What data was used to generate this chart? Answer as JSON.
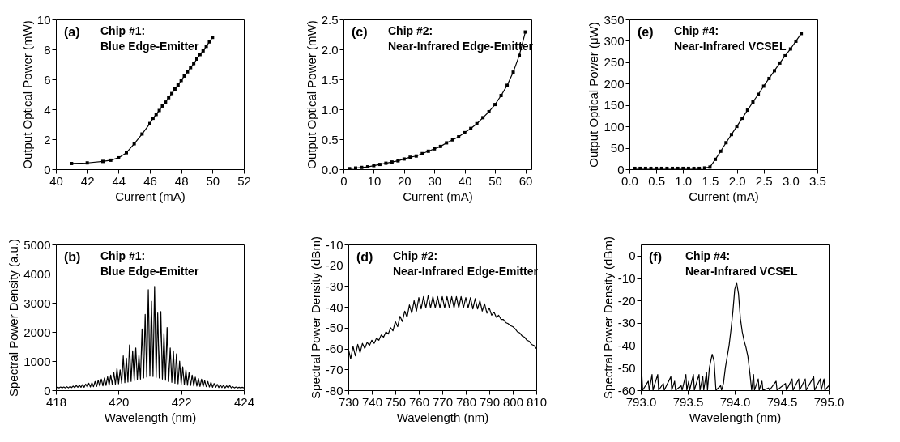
{
  "chart_data": [
    {
      "type": "line",
      "xlabel": "Current (mA)",
      "ylabel": "Output Optical Power (mW)",
      "annotations": [
        "(a)",
        "Chip #1:",
        "Blue Edge-Emitter"
      ],
      "xlim": [
        40,
        52
      ],
      "xticks": [
        40,
        42,
        44,
        46,
        48,
        50,
        52
      ],
      "ylim": [
        0,
        10
      ],
      "yticks": [
        0,
        2,
        4,
        6,
        8,
        10
      ],
      "marker": "square",
      "series": [
        {
          "color": "#000000",
          "x": [
            41,
            42,
            43,
            43.5,
            44,
            44.5,
            45,
            45.5,
            46,
            46.2,
            46.4,
            46.6,
            46.8,
            47,
            47.2,
            47.4,
            47.6,
            47.8,
            48,
            48.2,
            48.4,
            48.6,
            48.8,
            49,
            49.2,
            49.4,
            49.6,
            49.8,
            50
          ],
          "values": [
            0.38,
            0.42,
            0.52,
            0.6,
            0.76,
            1.1,
            1.7,
            2.35,
            3.05,
            3.4,
            3.65,
            3.92,
            4.22,
            4.48,
            4.77,
            5.05,
            5.35,
            5.62,
            5.92,
            6.22,
            6.5,
            6.78,
            7.05,
            7.35,
            7.65,
            7.9,
            8.2,
            8.5,
            8.8
          ]
        }
      ]
    },
    {
      "type": "line",
      "xlabel": "Current (mA)",
      "ylabel": "Output Optical Power (mW)",
      "annotations": [
        "(c)",
        "Chip #2:",
        "Near-Infrared Edge-Emitter"
      ],
      "xlim": [
        0,
        62
      ],
      "xticks": [
        0,
        10,
        20,
        30,
        40,
        50,
        60
      ],
      "ylim": [
        0,
        2.5
      ],
      "yticks": [
        {
          "value": 0,
          "label": "0.0"
        },
        0.5,
        {
          "value": 1,
          "label": "1.0"
        },
        1.5,
        {
          "value": 2,
          "label": "2.0"
        },
        2.5
      ],
      "marker": "square",
      "series": [
        {
          "color": "#000000",
          "x": [
            2,
            4,
            6,
            8,
            10,
            12,
            14,
            16,
            18,
            20,
            22,
            24,
            26,
            28,
            30,
            32,
            34,
            36,
            38,
            40,
            42,
            44,
            46,
            48,
            50,
            52,
            54,
            56,
            58,
            60
          ],
          "values": [
            0.01,
            0.02,
            0.03,
            0.04,
            0.06,
            0.08,
            0.1,
            0.12,
            0.14,
            0.17,
            0.2,
            0.22,
            0.26,
            0.3,
            0.34,
            0.38,
            0.44,
            0.49,
            0.54,
            0.61,
            0.68,
            0.76,
            0.86,
            0.96,
            1.08,
            1.23,
            1.4,
            1.62,
            1.9,
            2.29
          ]
        }
      ]
    },
    {
      "type": "line",
      "xlabel": "Current (mA)",
      "ylabel": "Output Optical Power (μW)",
      "annotations": [
        "(e)",
        "Chip #4:",
        "Near-Infrared VCSEL"
      ],
      "xlim": [
        0,
        3.5
      ],
      "xticks": [
        {
          "value": 0,
          "label": "0.0"
        },
        0.5,
        {
          "value": 1,
          "label": "1.0"
        },
        1.5,
        {
          "value": 2,
          "label": "2.0"
        },
        2.5,
        {
          "value": 3,
          "label": "3.0"
        },
        3.5
      ],
      "ylim": [
        0,
        350
      ],
      "yticks": [
        0,
        50,
        100,
        150,
        200,
        250,
        300,
        350
      ],
      "marker": "square",
      "series": [
        {
          "color": "#000000",
          "x": [
            0.1,
            0.2,
            0.3,
            0.4,
            0.5,
            0.6,
            0.7,
            0.8,
            0.9,
            1.0,
            1.1,
            1.2,
            1.3,
            1.4,
            1.5,
            1.6,
            1.7,
            1.8,
            1.9,
            2.0,
            2.1,
            2.2,
            2.3,
            2.4,
            2.5,
            2.6,
            2.7,
            2.8,
            2.9,
            3.0,
            3.1,
            3.2
          ],
          "values": [
            2,
            2,
            2,
            2,
            2,
            2,
            2,
            2,
            2,
            2,
            2,
            2,
            2,
            3,
            5,
            23,
            42,
            62,
            81,
            100,
            119,
            138,
            157,
            175,
            194,
            212,
            230,
            248,
            265,
            281,
            299,
            317
          ]
        }
      ]
    },
    {
      "type": "line",
      "xlabel": "Wavelength (nm)",
      "ylabel": "Spectral Power Density (a.u.)",
      "annotations": [
        "(b)",
        "Chip #1:",
        "Blue Edge-Emitter"
      ],
      "xlim": [
        418,
        424
      ],
      "xticks": [
        418,
        420,
        422,
        424
      ],
      "ylim": [
        0,
        5000
      ],
      "yticks": [
        0,
        1000,
        2000,
        3000,
        4000,
        5000
      ],
      "series": [
        {
          "color": "#000000",
          "x": [
            418.0,
            418.05,
            418.1,
            418.15,
            418.2,
            418.25,
            418.3,
            418.35,
            418.4,
            418.45,
            418.5,
            418.55,
            418.6,
            418.65,
            418.7,
            418.75,
            418.8,
            418.85,
            418.9,
            418.95,
            419.0,
            419.05,
            419.1,
            419.15,
            419.2,
            419.25,
            419.3,
            419.35,
            419.4,
            419.45,
            419.5,
            419.55,
            419.6,
            419.65,
            419.7,
            419.75,
            419.8,
            419.85,
            419.9,
            419.95,
            420.0,
            420.05,
            420.1,
            420.15,
            420.2,
            420.25,
            420.3,
            420.35,
            420.4,
            420.45,
            420.5,
            420.55,
            420.6,
            420.65,
            420.7,
            420.75,
            420.8,
            420.85,
            420.9,
            420.95,
            421.0,
            421.05,
            421.1,
            421.15,
            421.2,
            421.25,
            421.3,
            421.35,
            421.4,
            421.45,
            421.5,
            421.55,
            421.6,
            421.65,
            421.7,
            421.75,
            421.8,
            421.85,
            421.9,
            421.95,
            422.0,
            422.05,
            422.1,
            422.15,
            422.2,
            422.25,
            422.3,
            422.35,
            422.4,
            422.45,
            422.5,
            422.55,
            422.6,
            422.65,
            422.7,
            422.75,
            422.8,
            422.85,
            422.9,
            422.95,
            423.0,
            423.05,
            423.1,
            423.15,
            423.2,
            423.25,
            423.3,
            423.35,
            423.4,
            423.45,
            423.5,
            423.55,
            423.6,
            423.65,
            423.7,
            423.75,
            423.8,
            423.85,
            423.9,
            423.95,
            424.0
          ],
          "values": [
            80,
            100,
            80,
            110,
            80,
            110,
            80,
            120,
            80,
            130,
            90,
            140,
            90,
            160,
            100,
            170,
            100,
            190,
            100,
            210,
            110,
            240,
            110,
            260,
            120,
            300,
            130,
            340,
            140,
            380,
            150,
            420,
            160,
            460,
            170,
            520,
            190,
            600,
            200,
            750,
            220,
            700,
            240,
            1180,
            260,
            1100,
            280,
            1550,
            300,
            1350,
            330,
            1450,
            360,
            1200,
            380,
            2100,
            420,
            2600,
            450,
            3450,
            480,
            3050,
            470,
            3560,
            440,
            2650,
            420,
            2700,
            380,
            1950,
            340,
            2150,
            300,
            1450,
            270,
            1350,
            240,
            1250,
            220,
            1000,
            200,
            800,
            180,
            700,
            170,
            600,
            160,
            520,
            150,
            450,
            140,
            400,
            130,
            380,
            120,
            330,
            120,
            300,
            110,
            270,
            100,
            230,
            100,
            200,
            90,
            180,
            90,
            170,
            80,
            150,
            80,
            160,
            80,
            120,
            80,
            110,
            80,
            100,
            80,
            100,
            80
          ]
        }
      ]
    },
    {
      "type": "line",
      "xlabel": "Wavelength (nm)",
      "ylabel": "Spectral Power Density (dBm)",
      "annotations": [
        "(d)",
        "Chip #2:",
        "Near-Infrared Edge-Emitter"
      ],
      "xlim": [
        730,
        810
      ],
      "xticks": [
        730,
        740,
        750,
        760,
        770,
        780,
        790,
        800,
        810
      ],
      "ylim": [
        -80,
        -10
      ],
      "yticks": [
        -80,
        -70,
        -60,
        -50,
        -40,
        -30,
        -20,
        -10
      ],
      "series": [
        {
          "color": "#000000",
          "x": [
            730,
            731,
            732,
            733,
            734,
            735,
            736,
            737,
            738,
            739,
            740,
            741,
            742,
            743,
            744,
            745,
            746,
            747,
            748,
            749,
            750,
            751,
            752,
            753,
            754,
            755,
            756,
            757,
            758,
            759,
            760,
            761,
            762,
            763,
            764,
            765,
            766,
            767,
            768,
            769,
            770,
            771,
            772,
            773,
            774,
            775,
            776,
            777,
            778,
            779,
            780,
            781,
            782,
            783,
            784,
            785,
            786,
            787,
            788,
            789,
            790,
            791,
            792,
            793,
            794,
            795,
            796,
            797,
            798,
            799,
            800,
            801,
            802,
            803,
            804,
            805,
            806,
            807,
            808,
            809,
            810
          ],
          "values": [
            -60,
            -65,
            -59,
            -63.5,
            -58,
            -62,
            -57.5,
            -60,
            -57,
            -58.5,
            -56,
            -57.5,
            -55,
            -56,
            -53.5,
            -54.5,
            -52,
            -53,
            -50,
            -51.5,
            -47,
            -49.5,
            -44.5,
            -47,
            -42,
            -45,
            -39,
            -43,
            -37,
            -42,
            -35.5,
            -41,
            -35,
            -40.5,
            -34.5,
            -40.5,
            -35,
            -40.5,
            -35,
            -40.5,
            -35,
            -40.5,
            -35,
            -40.5,
            -35,
            -40.5,
            -35,
            -40.5,
            -35,
            -40.5,
            -35.5,
            -40.5,
            -35.5,
            -41,
            -36,
            -41,
            -37,
            -42,
            -38.5,
            -43,
            -40.5,
            -44,
            -42.5,
            -45,
            -44,
            -46,
            -46,
            -47.5,
            -48,
            -49,
            -49.5,
            -50.5,
            -52,
            -52.5,
            -54,
            -54.5,
            -56,
            -56.5,
            -58,
            -58.5,
            -60
          ]
        }
      ]
    },
    {
      "type": "line",
      "xlabel": "Wavelength (nm)",
      "ylabel": "Spectral Power Density (dBm)",
      "annotations": [
        "(f)",
        "Chip #4:",
        "Near-Infrared VCSEL"
      ],
      "xlim": [
        793,
        795
      ],
      "xticks": [
        {
          "value": 793,
          "label": "793.0"
        },
        793.5,
        {
          "value": 794,
          "label": "794.0"
        },
        794.5,
        {
          "value": 795,
          "label": "795.0"
        }
      ],
      "ylim": [
        -60,
        5
      ],
      "yticks": [
        -60,
        -50,
        -40,
        -30,
        -20,
        -10,
        0
      ],
      "series": [
        {
          "color": "#000000",
          "x": [
            793.0,
            793.01,
            793.02,
            793.08,
            793.09,
            793.12,
            793.13,
            793.18,
            793.19,
            793.24,
            793.25,
            793.32,
            793.33,
            793.36,
            793.37,
            793.43,
            793.44,
            793.48,
            793.49,
            793.51,
            793.52,
            793.56,
            793.57,
            793.62,
            793.63,
            793.66,
            793.67,
            793.7,
            793.71,
            793.73,
            793.75,
            793.76,
            793.78,
            793.8,
            793.85,
            793.86,
            793.88,
            793.9,
            793.92,
            793.94,
            793.96,
            793.98,
            794.0,
            794.02,
            794.04,
            794.06,
            794.08,
            794.1,
            794.12,
            794.14,
            794.16,
            794.18,
            794.2,
            794.21,
            794.25,
            794.26,
            794.29,
            794.3,
            794.36,
            794.37,
            794.44,
            794.45,
            794.54,
            794.55,
            794.61,
            794.62,
            794.68,
            794.69,
            794.75,
            794.76,
            794.84,
            794.85,
            794.91,
            794.92,
            794.95,
            794.96,
            795.0
          ],
          "values": [
            -60,
            -52,
            -60,
            -56,
            -60,
            -53,
            -60,
            -53,
            -60,
            -57,
            -60,
            -54,
            -60,
            -56,
            -60,
            -58,
            -60,
            -53,
            -60,
            -56,
            -60,
            -53,
            -60,
            -53,
            -60,
            -54,
            -60,
            -52,
            -60,
            -50,
            -46,
            -44,
            -47,
            -60,
            -58,
            -60,
            -57,
            -50,
            -45,
            -40,
            -33,
            -25,
            -15,
            -12,
            -17,
            -28,
            -34,
            -38,
            -41,
            -45,
            -52,
            -60,
            -53,
            -60,
            -55,
            -60,
            -56,
            -60,
            -59,
            -60,
            -56,
            -60,
            -57,
            -60,
            -55,
            -60,
            -55,
            -60,
            -55,
            -60,
            -54,
            -60,
            -55,
            -60,
            -55,
            -60,
            -58
          ]
        }
      ]
    }
  ]
}
